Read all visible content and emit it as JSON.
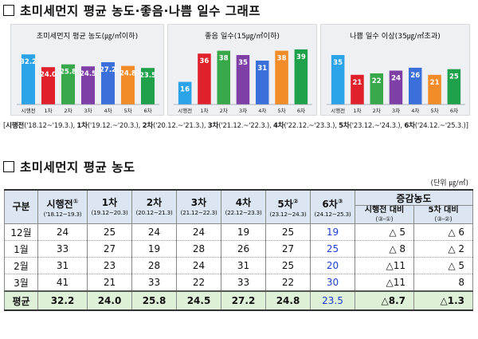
{
  "section1_title": "초미세먼지 평균 농도·좋음·나쁨 일수 그래프",
  "section2_title": "초미세먼지 평균 농도",
  "charts": [
    {
      "title": "초미세먼지 평균 농도(㎍/㎥이하)",
      "categories": [
        "시행전",
        "1차",
        "2차",
        "3차",
        "4차",
        "5차",
        "6차"
      ],
      "values": [
        32.2,
        24.0,
        25.8,
        24.5,
        27.2,
        24.8,
        23.5
      ],
      "value_labels": [
        "32.2",
        "24.0",
        "25.8",
        "24.5",
        "27.2",
        "24.8",
        "23.5"
      ],
      "ymax": 40,
      "colors": [
        "#2aa3e8",
        "#e0202a",
        "#38a84a",
        "#7e3fa6",
        "#3b6fd9",
        "#f28c28",
        "#1fa04a"
      ]
    },
    {
      "title": "좋음 일수(15㎍/㎥이하)",
      "categories": [
        "시행전",
        "1차",
        "2차",
        "3차",
        "4차",
        "5차",
        "6차"
      ],
      "values": [
        16,
        36,
        38,
        35,
        31,
        38,
        39
      ],
      "value_labels": [
        "16",
        "36",
        "38",
        "35",
        "31",
        "38",
        "39"
      ],
      "ymax": 44,
      "colors": [
        "#2aa3e8",
        "#e0202a",
        "#38a84a",
        "#7e3fa6",
        "#3b6fd9",
        "#f28c28",
        "#1fa04a"
      ]
    },
    {
      "title": "나쁨 일수 이상(35㎍/㎥초과)",
      "categories": [
        "시행전",
        "1차",
        "2차",
        "3차",
        "4차",
        "5차",
        "6차"
      ],
      "values": [
        35,
        21,
        22,
        24,
        26,
        21,
        25
      ],
      "value_labels": [
        "35",
        "21",
        "22",
        "24",
        "26",
        "21",
        "25"
      ],
      "ymax": 44,
      "colors": [
        "#2aa3e8",
        "#e0202a",
        "#38a84a",
        "#7e3fa6",
        "#3b6fd9",
        "#f28c28",
        "#1fa04a"
      ]
    }
  ],
  "period": {
    "open": "[",
    "close": "]",
    "items": [
      {
        "label": "시행전",
        "range": "('18.12~'19.3.), "
      },
      {
        "label": "1차",
        "range": "('19.12.~'20.3.), "
      },
      {
        "label": "2차",
        "range": "('20.12.~'21.3.), "
      },
      {
        "label": "3차",
        "range": "('21.12.~'22.3.), "
      },
      {
        "label": "4차",
        "range": "('22.12.~'23.3.), "
      },
      {
        "label": "5차",
        "range": "('23.12.~'24.3.), "
      },
      {
        "label": "6차",
        "range": "('24.12.~'25.3.)"
      }
    ]
  },
  "unit": "(단위 ㎍/㎥)",
  "table": {
    "corner": "구분",
    "columns": [
      {
        "name": "시행전",
        "mark": "①",
        "sub": "('18.12~19.3)"
      },
      {
        "name": "1차",
        "mark": "",
        "sub": "(19.12~20.3)"
      },
      {
        "name": "2차",
        "mark": "",
        "sub": "(20.12~21.3)"
      },
      {
        "name": "3차",
        "mark": "",
        "sub": "(21.12~22.3)"
      },
      {
        "name": "4차",
        "mark": "",
        "sub": "(22.12~23.3)"
      },
      {
        "name": "5차",
        "mark": "②",
        "sub": "(23.12~24.3)"
      },
      {
        "name": "6차",
        "mark": "③",
        "sub": "(24.12~25.3)"
      }
    ],
    "diff_header": "증감농도",
    "diff_cols": [
      {
        "name": "시행전 대비",
        "sub": "(③-①)"
      },
      {
        "name": "5차 대비",
        "sub": "(③-②)"
      }
    ],
    "rows": [
      {
        "label": "12월",
        "cells": [
          "24",
          "25",
          "24",
          "24",
          "19",
          "25",
          "19"
        ],
        "diffs": [
          "△ 5",
          "△ 6"
        ]
      },
      {
        "label": "1월",
        "cells": [
          "33",
          "27",
          "19",
          "28",
          "26",
          "27",
          "25"
        ],
        "diffs": [
          "△ 8",
          "△ 2"
        ]
      },
      {
        "label": "2월",
        "cells": [
          "31",
          "23",
          "28",
          "24",
          "31",
          "25",
          "20"
        ],
        "diffs": [
          "△11",
          "△ 5"
        ]
      },
      {
        "label": "3월",
        "cells": [
          "41",
          "21",
          "33",
          "22",
          "33",
          "22",
          "30"
        ],
        "diffs": [
          "△11",
          "8"
        ]
      }
    ],
    "avg": {
      "label": "평균",
      "cells": [
        "32.2",
        "24.0",
        "25.8",
        "24.5",
        "27.2",
        "24.8",
        "23.5"
      ],
      "diffs": [
        "△8.7",
        "△1.3"
      ]
    }
  }
}
